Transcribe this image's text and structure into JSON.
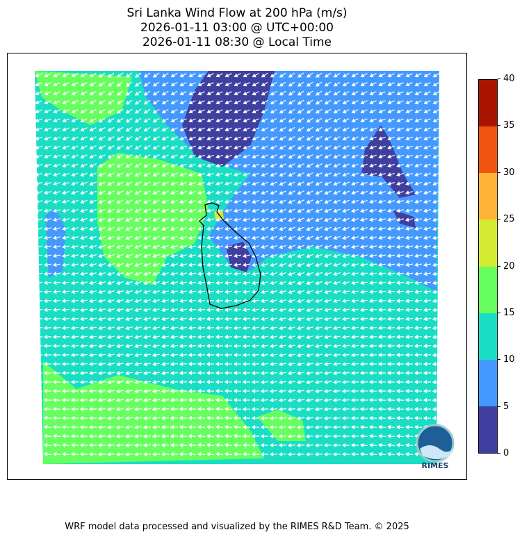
{
  "title": {
    "line1": "Sri Lanka Wind Flow at 200 hPa (m/s)",
    "line2": "2026-01-11 03:00 @ UTC+00:00",
    "line3": "2026-01-11 08:30 @ Local Time"
  },
  "colorbar": {
    "levels": [
      "0",
      "5",
      "10",
      "15",
      "20",
      "25",
      "30",
      "35",
      "40"
    ],
    "colors": [
      "#3f3f9f",
      "#4499ff",
      "#1adec4",
      "#66ff5e",
      "#d2ea30",
      "#ffb236",
      "#f0520f",
      "#a81400"
    ]
  },
  "map": {
    "region": "Sri Lanka",
    "field": "wind speed with direction arrows",
    "arrow_color": "#ffffff",
    "coastline_color": "#000000"
  },
  "logo": {
    "text": "RIMES"
  },
  "footer": "WRF model data processed and visualized by the RIMES R&D Team. © 2025"
}
